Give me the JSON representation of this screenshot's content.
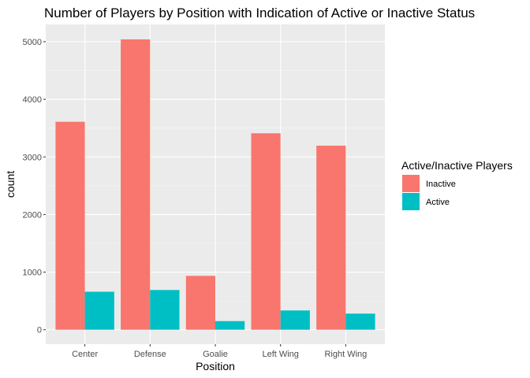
{
  "chart_data": {
    "type": "bar",
    "title": "Number of Players by Position with Indication of Active or Inactive Status",
    "xlabel": "Position",
    "ylabel": "count",
    "categories": [
      "Center",
      "Defense",
      "Goalie",
      "Left Wing",
      "Right Wing"
    ],
    "series": [
      {
        "name": "Inactive",
        "color": "#F8766D",
        "values": [
          3610,
          5040,
          935,
          3410,
          3195
        ]
      },
      {
        "name": "Active",
        "color": "#00BFC4",
        "values": [
          660,
          690,
          150,
          335,
          280
        ]
      }
    ],
    "ylim": [
      -250,
      5300
    ],
    "yticks": [
      0,
      1000,
      2000,
      3000,
      4000,
      5000
    ],
    "ytick_labels": [
      "0",
      "1000",
      "2000",
      "3000",
      "4000",
      "5000"
    ],
    "grid": true,
    "legend": {
      "title": "Active/Inactive Players",
      "placement": "right"
    },
    "colors": {
      "panel_background": "#EBEBEB",
      "grid_major": "#FFFFFF",
      "grid_minor": "#F5F5F5"
    }
  }
}
